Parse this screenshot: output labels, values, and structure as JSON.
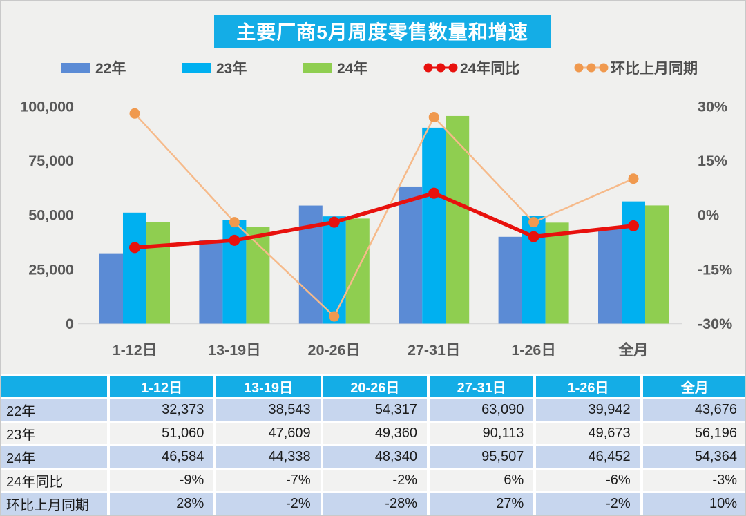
{
  "page": {
    "background": "#F0F0EE",
    "border_color": "#C9C9C9"
  },
  "title": {
    "text": "主要厂商5月周度零售数量和增速",
    "bg": "#14ADE6",
    "color": "#FFFFFF"
  },
  "legend": {
    "items": [
      {
        "label": "22年",
        "type": "swatch",
        "color": "#5B8BD5"
      },
      {
        "label": "23年",
        "type": "swatch",
        "color": "#00B0F0"
      },
      {
        "label": "24年",
        "type": "swatch",
        "color": "#8FCE50"
      },
      {
        "label": "24年同比",
        "type": "line",
        "color": "#E8110D",
        "marker_color": "#E8110D"
      },
      {
        "label": "环比上月同期",
        "type": "line",
        "color": "#F6BA8A",
        "marker_color": "#F0994E"
      }
    ]
  },
  "chart_data": {
    "type": "bar+line",
    "title": "主要厂商5月周度零售数量和增速",
    "categories": [
      "1-12日",
      "13-19日",
      "20-26日",
      "27-31日",
      "1-26日",
      "全月"
    ],
    "bar_series": [
      {
        "name": "22年",
        "color": "#5B8BD5",
        "values": [
          32373,
          38543,
          54317,
          63090,
          39942,
          43676
        ]
      },
      {
        "name": "23年",
        "color": "#00B0F0",
        "values": [
          51060,
          47609,
          49360,
          90113,
          49673,
          56196
        ]
      },
      {
        "name": "24年",
        "color": "#8FCE50",
        "values": [
          46584,
          44338,
          48340,
          95507,
          46452,
          54364
        ]
      }
    ],
    "line_series": [
      {
        "name": "环比上月同期",
        "axis": "right",
        "unit": "%",
        "color": "#F6BA8A",
        "marker_color": "#F0994E",
        "line_width": 2.5,
        "marker_radius": 7.5,
        "values": [
          28,
          -2,
          -28,
          27,
          -2,
          10
        ]
      },
      {
        "name": "24年同比",
        "axis": "right",
        "unit": "%",
        "color": "#E8110D",
        "marker_color": "#E8110D",
        "line_width": 5.5,
        "marker_radius": 8,
        "values": [
          -9,
          -7,
          -2,
          6,
          -6,
          -3
        ]
      }
    ],
    "left_axis": {
      "min": 0,
      "max": 100000,
      "tick_values": [
        100000,
        75000,
        50000,
        25000,
        0
      ],
      "tick_labels": [
        "100,000",
        "75,000",
        "50,000",
        "25,000",
        "0"
      ]
    },
    "right_axis": {
      "min": -30,
      "max": 30,
      "tick_values": [
        30,
        15,
        0,
        -15,
        -30
      ],
      "tick_labels": [
        "30%",
        "15%",
        "0%",
        "-15%",
        "-30%"
      ]
    },
    "grid": false,
    "legend_position": "top",
    "axis_text_color": "#595959",
    "baseline_color": "#D9D9D9"
  },
  "table": {
    "header": [
      "",
      "1-12日",
      "13-19日",
      "20-26日",
      "27-31日",
      "1-26日",
      "全月"
    ],
    "rows": [
      {
        "label": "22年",
        "values": [
          "32,373",
          "38,543",
          "54,317",
          "63,090",
          "39,942",
          "43,676"
        ]
      },
      {
        "label": "23年",
        "values": [
          "51,060",
          "47,609",
          "49,360",
          "90,113",
          "49,673",
          "56,196"
        ]
      },
      {
        "label": "24年",
        "values": [
          "46,584",
          "44,338",
          "48,340",
          "95,507",
          "46,452",
          "54,364"
        ]
      },
      {
        "label": "24年同比",
        "values": [
          "-9%",
          "-7%",
          "-2%",
          "6%",
          "-6%",
          "-3%"
        ]
      },
      {
        "label": "环比上月同期",
        "values": [
          "28%",
          "-2%",
          "-28%",
          "27%",
          "-2%",
          "10%"
        ]
      }
    ],
    "header_bg": "#14ADE6",
    "row_bg_alt": [
      "#C7D6EE",
      "#F2F2F1"
    ]
  }
}
